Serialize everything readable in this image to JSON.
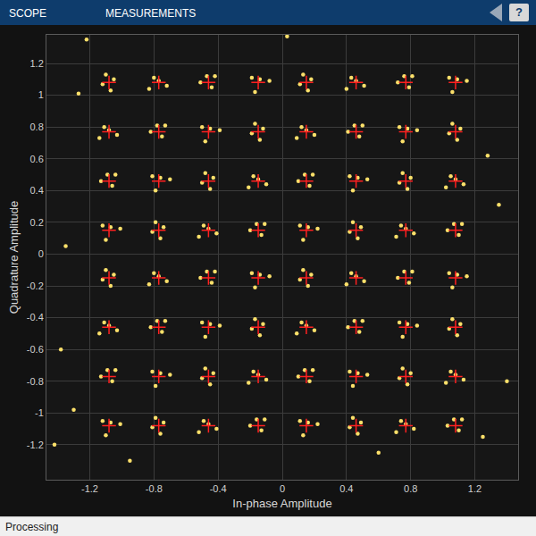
{
  "header": {
    "tabs": [
      "SCOPE",
      "MEASUREMENTS"
    ],
    "help": "?"
  },
  "status": "Processing",
  "chart_data": {
    "type": "scatter",
    "x_label": "In-phase Amplitude",
    "y_label": "Quadrature Amplitude",
    "xlim": [
      -1.47,
      1.47
    ],
    "ylim": [
      -1.42,
      1.38
    ],
    "xticks": [
      -1.2,
      -0.8,
      -0.4,
      0,
      0.4,
      0.8,
      1.2
    ],
    "yticks": [
      -1.2,
      -1,
      -0.8,
      -0.6,
      -0.4,
      -0.2,
      0,
      0.2,
      0.4,
      0.6,
      0.8,
      1,
      1.2
    ],
    "grid": true,
    "series": [
      {
        "color": "#fce06a",
        "marker": "circle",
        "x": [
          -1.05,
          -1.12,
          -1.07,
          -1.1,
          -0.72,
          -0.8,
          -0.77,
          -0.83,
          -0.47,
          -0.42,
          -0.51,
          -0.44,
          -0.08,
          -0.17,
          -0.14,
          -0.19,
          0.18,
          0.11,
          0.16,
          0.13,
          0.51,
          0.43,
          0.46,
          0.4,
          0.76,
          0.81,
          0.72,
          0.79,
          1.15,
          1.06,
          1.09,
          1.04,
          -1.03,
          -1.11,
          -1.08,
          -1.14,
          -0.78,
          -0.73,
          -0.82,
          -0.75,
          -0.39,
          -0.48,
          -0.45,
          -0.5,
          -0.12,
          -0.19,
          -0.14,
          -0.17,
          0.2,
          0.12,
          0.15,
          0.09,
          0.45,
          0.5,
          0.41,
          0.48,
          0.84,
          0.75,
          0.78,
          0.73,
          1.11,
          1.04,
          1.09,
          1.06,
          -1.09,
          -1.04,
          -1.13,
          -1.06,
          -0.7,
          -0.79,
          -0.76,
          -0.81,
          -0.43,
          -0.5,
          -0.45,
          -0.48,
          -0.1,
          -0.18,
          -0.15,
          -0.21,
          0.14,
          0.19,
          0.1,
          0.17,
          0.53,
          0.44,
          0.47,
          0.42,
          0.8,
          0.73,
          0.78,
          0.75,
          1.13,
          1.05,
          1.08,
          1.02,
          -1.01,
          -1.1,
          -1.07,
          -1.12,
          -0.74,
          -0.81,
          -0.76,
          -0.79,
          -0.41,
          -0.49,
          -0.46,
          -0.52,
          -0.16,
          -0.11,
          -0.2,
          -0.13,
          0.22,
          0.13,
          0.16,
          0.11,
          0.49,
          0.42,
          0.47,
          0.44,
          0.82,
          0.74,
          0.77,
          0.71,
          1.07,
          1.12,
          1.03,
          1.1,
          -1.05,
          -1.12,
          -1.07,
          -1.1,
          -0.72,
          -0.8,
          -0.77,
          -0.83,
          -0.47,
          -0.42,
          -0.51,
          -0.44,
          -0.08,
          -0.17,
          -0.14,
          -0.19,
          0.18,
          0.11,
          0.16,
          0.13,
          0.51,
          0.43,
          0.46,
          0.4,
          0.76,
          0.81,
          0.72,
          0.79,
          1.15,
          1.06,
          1.09,
          1.04,
          -1.03,
          -1.11,
          -1.08,
          -1.14,
          -0.78,
          -0.73,
          -0.82,
          -0.75,
          -0.39,
          -0.48,
          -0.45,
          -0.5,
          -0.12,
          -0.19,
          -0.14,
          -0.17,
          0.2,
          0.12,
          0.15,
          0.09,
          0.45,
          0.5,
          0.41,
          0.48,
          0.84,
          0.75,
          0.78,
          0.73,
          1.11,
          1.04,
          1.09,
          1.06,
          -1.09,
          -1.04,
          -1.13,
          -1.06,
          -0.7,
          -0.79,
          -0.76,
          -0.81,
          -0.43,
          -0.5,
          -0.45,
          -0.48,
          -0.1,
          -0.18,
          -0.15,
          -0.21,
          0.14,
          0.19,
          0.1,
          0.17,
          0.53,
          0.44,
          0.47,
          0.42,
          0.8,
          0.73,
          0.78,
          0.75,
          1.13,
          1.05,
          1.08,
          1.02,
          -1.01,
          -1.1,
          -1.07,
          -1.12,
          -0.74,
          -0.81,
          -0.76,
          -0.79,
          -0.41,
          -0.49,
          -0.46,
          -0.52,
          -0.16,
          -0.11,
          -0.2,
          -0.13,
          0.22,
          0.13,
          0.16,
          0.11,
          0.49,
          0.42,
          0.47,
          0.44,
          0.82,
          0.74,
          0.77,
          0.71,
          1.07,
          1.12,
          1.03,
          1.1,
          -1.42,
          -1.3,
          -1.38,
          1.4,
          1.28,
          -1.27,
          0.03,
          -1.22,
          1.35,
          -0.95,
          0.6,
          1.25,
          -1.35
        ],
        "y": [
          1.1,
          1.07,
          1.03,
          1.13,
          1.06,
          1.11,
          1.09,
          1.04,
          1.12,
          1.12,
          1.08,
          1.05,
          1.09,
          1.02,
          1.1,
          1.11,
          1.1,
          1.07,
          1.03,
          1.13,
          1.06,
          1.11,
          1.09,
          1.04,
          1.12,
          1.12,
          1.08,
          1.05,
          1.09,
          1.02,
          1.1,
          1.11,
          0.75,
          0.8,
          0.78,
          0.73,
          0.81,
          0.81,
          0.77,
          0.74,
          0.78,
          0.71,
          0.79,
          0.8,
          0.79,
          0.76,
          0.72,
          0.82,
          0.75,
          0.8,
          0.78,
          0.73,
          0.81,
          0.81,
          0.77,
          0.74,
          0.78,
          0.71,
          0.79,
          0.8,
          0.79,
          0.76,
          0.72,
          0.82,
          0.5,
          0.5,
          0.46,
          0.43,
          0.47,
          0.4,
          0.48,
          0.49,
          0.48,
          0.45,
          0.41,
          0.51,
          0.44,
          0.49,
          0.47,
          0.42,
          0.5,
          0.5,
          0.46,
          0.43,
          0.47,
          0.4,
          0.48,
          0.49,
          0.48,
          0.45,
          0.41,
          0.51,
          0.44,
          0.49,
          0.47,
          0.42,
          0.16,
          0.09,
          0.17,
          0.18,
          0.17,
          0.14,
          0.1,
          0.2,
          0.13,
          0.18,
          0.16,
          0.11,
          0.19,
          0.19,
          0.15,
          0.12,
          0.16,
          0.09,
          0.17,
          0.18,
          0.17,
          0.14,
          0.1,
          0.2,
          0.13,
          0.18,
          0.16,
          0.11,
          0.19,
          0.19,
          0.15,
          0.12,
          -0.13,
          -0.16,
          -0.2,
          -0.1,
          -0.17,
          -0.12,
          -0.14,
          -0.19,
          -0.11,
          -0.11,
          -0.15,
          -0.18,
          -0.14,
          -0.21,
          -0.13,
          -0.12,
          -0.13,
          -0.16,
          -0.2,
          -0.1,
          -0.17,
          -0.12,
          -0.14,
          -0.19,
          -0.11,
          -0.11,
          -0.15,
          -0.18,
          -0.14,
          -0.21,
          -0.13,
          -0.12,
          -0.48,
          -0.43,
          -0.45,
          -0.5,
          -0.42,
          -0.42,
          -0.46,
          -0.49,
          -0.45,
          -0.52,
          -0.44,
          -0.43,
          -0.44,
          -0.47,
          -0.51,
          -0.41,
          -0.48,
          -0.43,
          -0.45,
          -0.5,
          -0.42,
          -0.42,
          -0.46,
          -0.49,
          -0.45,
          -0.52,
          -0.44,
          -0.43,
          -0.44,
          -0.47,
          -0.51,
          -0.41,
          -0.73,
          -0.73,
          -0.77,
          -0.8,
          -0.76,
          -0.83,
          -0.75,
          -0.74,
          -0.75,
          -0.78,
          -0.82,
          -0.72,
          -0.79,
          -0.74,
          -0.76,
          -0.81,
          -0.73,
          -0.73,
          -0.77,
          -0.8,
          -0.76,
          -0.83,
          -0.75,
          -0.74,
          -0.75,
          -0.78,
          -0.82,
          -0.72,
          -0.79,
          -0.74,
          -0.76,
          -0.81,
          -1.07,
          -1.14,
          -1.06,
          -1.05,
          -1.06,
          -1.09,
          -1.13,
          -1.03,
          -1.1,
          -1.05,
          -1.07,
          -1.12,
          -1.04,
          -1.04,
          -1.08,
          -1.11,
          -1.07,
          -1.14,
          -1.06,
          -1.05,
          -1.06,
          -1.09,
          -1.13,
          -1.03,
          -1.1,
          -1.05,
          -1.07,
          -1.12,
          -1.04,
          -1.04,
          -1.08,
          -1.11,
          -1.2,
          -0.98,
          -0.6,
          -0.8,
          0.62,
          1.01,
          1.37,
          1.35,
          0.31,
          -1.3,
          -1.25,
          -1.15,
          0.05
        ]
      },
      {
        "color": "#ff2020",
        "marker": "plus",
        "x": [
          -1.08,
          -0.77,
          -0.46,
          -0.15,
          0.15,
          0.46,
          0.77,
          1.08,
          -1.08,
          -0.77,
          -0.46,
          -0.15,
          0.15,
          0.46,
          0.77,
          1.08,
          -1.08,
          -0.77,
          -0.46,
          -0.15,
          0.15,
          0.46,
          0.77,
          1.08,
          -1.08,
          -0.77,
          -0.46,
          -0.15,
          0.15,
          0.46,
          0.77,
          1.08,
          -1.08,
          -0.77,
          -0.46,
          -0.15,
          0.15,
          0.46,
          0.77,
          1.08,
          -1.08,
          -0.77,
          -0.46,
          -0.15,
          0.15,
          0.46,
          0.77,
          1.08,
          -1.08,
          -0.77,
          -0.46,
          -0.15,
          0.15,
          0.46,
          0.77,
          1.08,
          -1.08,
          -0.77,
          -0.46,
          -0.15,
          0.15,
          0.46,
          0.77,
          1.08
        ],
        "y": [
          1.08,
          1.08,
          1.08,
          1.08,
          1.08,
          1.08,
          1.08,
          1.08,
          0.77,
          0.77,
          0.77,
          0.77,
          0.77,
          0.77,
          0.77,
          0.77,
          0.46,
          0.46,
          0.46,
          0.46,
          0.46,
          0.46,
          0.46,
          0.46,
          0.15,
          0.15,
          0.15,
          0.15,
          0.15,
          0.15,
          0.15,
          0.15,
          -0.15,
          -0.15,
          -0.15,
          -0.15,
          -0.15,
          -0.15,
          -0.15,
          -0.15,
          -0.46,
          -0.46,
          -0.46,
          -0.46,
          -0.46,
          -0.46,
          -0.46,
          -0.46,
          -0.77,
          -0.77,
          -0.77,
          -0.77,
          -0.77,
          -0.77,
          -0.77,
          -0.77,
          -1.08,
          -1.08,
          -1.08,
          -1.08,
          -1.08,
          -1.08,
          -1.08,
          -1.08
        ]
      }
    ]
  }
}
